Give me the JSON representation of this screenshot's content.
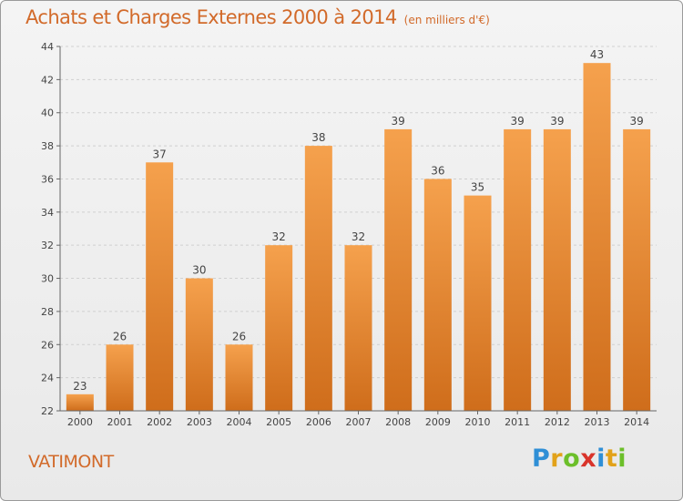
{
  "title": "Achats et Charges Externes 2000 à 2014",
  "unit": "(en milliers d'€)",
  "place": "VATIMONT",
  "brand": {
    "letters": [
      "P",
      "r",
      "o",
      "x",
      "i",
      "t",
      "i"
    ],
    "colors": [
      "#2f8fd6",
      "#e2a21a",
      "#6cbf2a",
      "#d9342b",
      "#2f8fd6",
      "#e2a21a",
      "#6cbf2a"
    ]
  },
  "colors": {
    "bar_top": "#f5a14d",
    "bar_bottom": "#cf6d1b",
    "accent": "#d26a2a"
  },
  "chart_data": {
    "type": "bar",
    "title": "Achats et Charges Externes 2000 à 2014",
    "categories": [
      "2000",
      "2001",
      "2002",
      "2003",
      "2004",
      "2005",
      "2006",
      "2007",
      "2008",
      "2009",
      "2010",
      "2011",
      "2012",
      "2013",
      "2014"
    ],
    "values": [
      23,
      26,
      37,
      30,
      26,
      32,
      38,
      32,
      39,
      36,
      35,
      39,
      39,
      43,
      39
    ],
    "ylim": [
      22,
      44
    ],
    "yticks": [
      "22",
      "24",
      "26",
      "28",
      "30",
      "32",
      "34",
      "36",
      "38",
      "40",
      "42",
      "44"
    ],
    "grid": true,
    "xlabel": "",
    "ylabel": ""
  }
}
